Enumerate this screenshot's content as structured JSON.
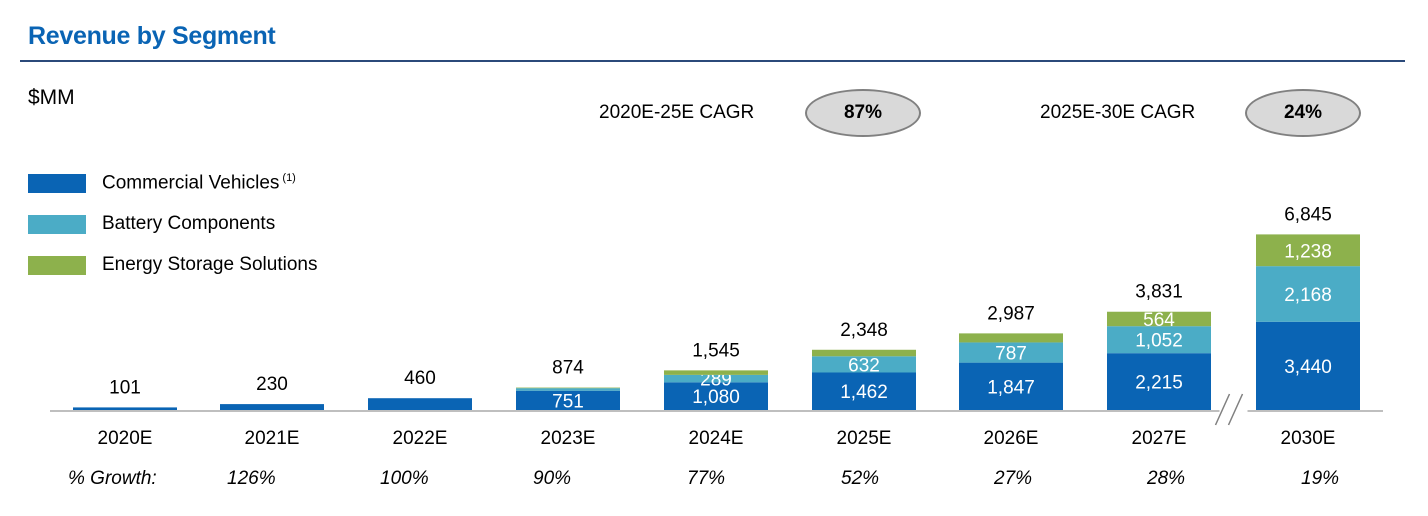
{
  "header": {
    "title": "Revenue by Segment",
    "unit": "$MM"
  },
  "cagr": [
    {
      "label": "2020E-25E  CAGR",
      "value": "87%"
    },
    {
      "label": "2025E-30E  CAGR",
      "value": "24%"
    }
  ],
  "growth_row": {
    "label": "% Growth:",
    "values": [
      "126%",
      "100%",
      "90%",
      "77%",
      "52%",
      "27%",
      "28%",
      "19%"
    ]
  },
  "colors": {
    "commercial": "#0a64b4",
    "battery": "#4bacc6",
    "energy": "#8db14c",
    "title": "#0a64b4"
  },
  "chart_data": {
    "type": "bar",
    "stacked": true,
    "categories": [
      "2020E",
      "2021E",
      "2022E",
      "2023E",
      "2024E",
      "2025E",
      "2026E",
      "2027E",
      "2030E"
    ],
    "series": [
      {
        "name": "Commercial Vehicles",
        "footnote": "(1)",
        "color": "#0a64b4",
        "values": [
          101,
          230,
          460,
          751,
          1080,
          1462,
          1847,
          2215,
          3440
        ],
        "labels": [
          "",
          "",
          "",
          "751",
          "1,080",
          "1,462",
          "1,847",
          "2,215",
          "3,440"
        ]
      },
      {
        "name": "Battery Components",
        "color": "#4bacc6",
        "values": [
          0,
          0,
          0,
          100,
          289,
          632,
          787,
          1052,
          2168
        ],
        "labels": [
          "",
          "",
          "",
          "",
          "289",
          "632",
          "787",
          "1,052",
          "2,168"
        ]
      },
      {
        "name": "Energy Storage Solutions",
        "color": "#8db14c",
        "values": [
          0,
          0,
          0,
          23,
          176,
          254,
          353,
          564,
          1238
        ],
        "labels": [
          "",
          "",
          "",
          "",
          "",
          "",
          "",
          "564",
          "1,238"
        ]
      }
    ],
    "totals": [
      "101",
      "230",
      "460",
      "874",
      "1,545",
      "2,348",
      "2,987",
      "3,831",
      "6,845"
    ],
    "axis_break_after": "2027E",
    "legend": "top-left",
    "grid": false
  }
}
